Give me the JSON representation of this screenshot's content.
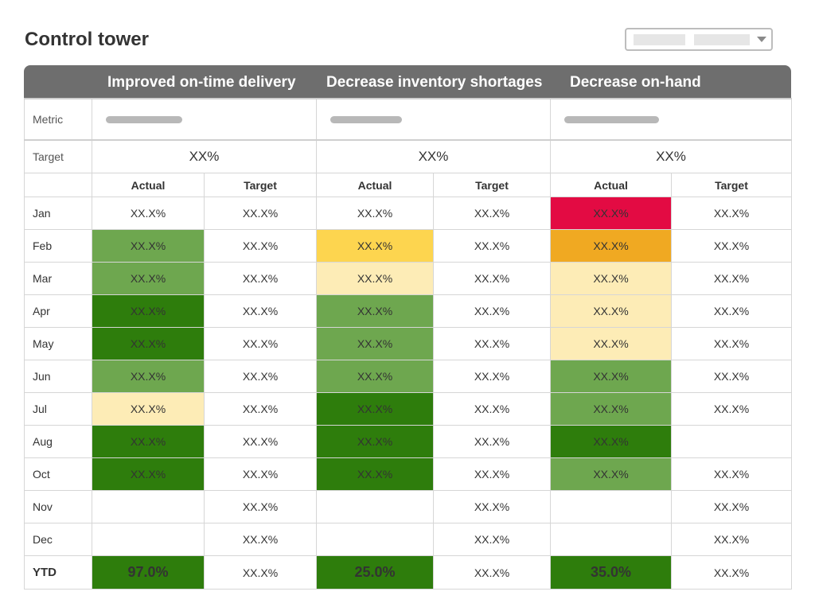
{
  "page": {
    "title": "Control tower"
  },
  "colors": {
    "header": "#6e6e6e",
    "red": "#e30b43",
    "orange": "#f0a922",
    "yellow": "#fdd54f",
    "pale_yellow": "#fdecb6",
    "light_green": "#6ea74f",
    "dark_green": "#2e7d0c"
  },
  "icons": {
    "selector_caret": "chevron-down-icon"
  },
  "table": {
    "groups": [
      {
        "title": "Improved on-time delivery",
        "target": "XX%"
      },
      {
        "title": "Decrease inventory shortages",
        "target": "XX%"
      },
      {
        "title": "Decrease on-hand",
        "target": "XX%"
      }
    ],
    "row_labels": {
      "metric": "Metric",
      "target": "Target"
    },
    "subheaders": {
      "actual": "Actual",
      "target": "Target"
    },
    "rows": [
      {
        "month": "Jan",
        "cells": [
          {
            "value": "XX.X%",
            "status": "none"
          },
          {
            "value": "XX.X%",
            "status": "none"
          },
          {
            "value": "XX.X%",
            "status": "none"
          },
          {
            "value": "XX.X%",
            "status": "none"
          },
          {
            "value": "XX.X%",
            "status": "red"
          },
          {
            "value": "XX.X%",
            "status": "none"
          }
        ]
      },
      {
        "month": "Feb",
        "cells": [
          {
            "value": "XX.X%",
            "status": "lightgreen"
          },
          {
            "value": "XX.X%",
            "status": "none"
          },
          {
            "value": "XX.X%",
            "status": "yellow"
          },
          {
            "value": "XX.X%",
            "status": "none"
          },
          {
            "value": "XX.X%",
            "status": "orange"
          },
          {
            "value": "XX.X%",
            "status": "none"
          }
        ]
      },
      {
        "month": "Mar",
        "cells": [
          {
            "value": "XX.X%",
            "status": "lightgreen"
          },
          {
            "value": "XX.X%",
            "status": "none"
          },
          {
            "value": "XX.X%",
            "status": "pale"
          },
          {
            "value": "XX.X%",
            "status": "none"
          },
          {
            "value": "XX.X%",
            "status": "pale"
          },
          {
            "value": "XX.X%",
            "status": "none"
          }
        ]
      },
      {
        "month": "Apr",
        "cells": [
          {
            "value": "XX.X%",
            "status": "darkgreen"
          },
          {
            "value": "XX.X%",
            "status": "none"
          },
          {
            "value": "XX.X%",
            "status": "lightgreen"
          },
          {
            "value": "XX.X%",
            "status": "none"
          },
          {
            "value": "XX.X%",
            "status": "pale"
          },
          {
            "value": "XX.X%",
            "status": "none"
          }
        ]
      },
      {
        "month": "May",
        "cells": [
          {
            "value": "XX.X%",
            "status": "darkgreen"
          },
          {
            "value": "XX.X%",
            "status": "none"
          },
          {
            "value": "XX.X%",
            "status": "lightgreen"
          },
          {
            "value": "XX.X%",
            "status": "none"
          },
          {
            "value": "XX.X%",
            "status": "pale"
          },
          {
            "value": "XX.X%",
            "status": "none"
          }
        ]
      },
      {
        "month": "Jun",
        "cells": [
          {
            "value": "XX.X%",
            "status": "lightgreen"
          },
          {
            "value": "XX.X%",
            "status": "none"
          },
          {
            "value": "XX.X%",
            "status": "lightgreen"
          },
          {
            "value": "XX.X%",
            "status": "none"
          },
          {
            "value": "XX.X%",
            "status": "lightgreen"
          },
          {
            "value": "XX.X%",
            "status": "none"
          }
        ]
      },
      {
        "month": "Jul",
        "cells": [
          {
            "value": "XX.X%",
            "status": "pale"
          },
          {
            "value": "XX.X%",
            "status": "none"
          },
          {
            "value": "XX.X%",
            "status": "darkgreen"
          },
          {
            "value": "XX.X%",
            "status": "none"
          },
          {
            "value": "XX.X%",
            "status": "lightgreen"
          },
          {
            "value": "XX.X%",
            "status": "none"
          }
        ]
      },
      {
        "month": "Aug",
        "cells": [
          {
            "value": "XX.X%",
            "status": "darkgreen"
          },
          {
            "value": "XX.X%",
            "status": "none"
          },
          {
            "value": "XX.X%",
            "status": "darkgreen"
          },
          {
            "value": "XX.X%",
            "status": "none"
          },
          {
            "value": "XX.X%",
            "status": "darkgreen"
          },
          {
            "value": "",
            "status": "none"
          }
        ]
      },
      {
        "month": "Oct",
        "cells": [
          {
            "value": "XX.X%",
            "status": "darkgreen"
          },
          {
            "value": "XX.X%",
            "status": "none"
          },
          {
            "value": "XX.X%",
            "status": "darkgreen"
          },
          {
            "value": "XX.X%",
            "status": "none"
          },
          {
            "value": "XX.X%",
            "status": "lightgreen"
          },
          {
            "value": "XX.X%",
            "status": "none"
          }
        ]
      },
      {
        "month": "Nov",
        "cells": [
          {
            "value": "",
            "status": "none"
          },
          {
            "value": "XX.X%",
            "status": "none"
          },
          {
            "value": "",
            "status": "none"
          },
          {
            "value": "XX.X%",
            "status": "none"
          },
          {
            "value": "",
            "status": "none"
          },
          {
            "value": "XX.X%",
            "status": "none"
          }
        ]
      },
      {
        "month": "Dec",
        "cells": [
          {
            "value": "",
            "status": "none"
          },
          {
            "value": "XX.X%",
            "status": "none"
          },
          {
            "value": "",
            "status": "none"
          },
          {
            "value": "XX.X%",
            "status": "none"
          },
          {
            "value": "",
            "status": "none"
          },
          {
            "value": "XX.X%",
            "status": "none"
          }
        ]
      }
    ],
    "ytd": {
      "label": "YTD",
      "cells": [
        {
          "value": "97.0%",
          "status": "darkgreen"
        },
        {
          "value": "XX.X%",
          "status": "none"
        },
        {
          "value": "25.0%",
          "status": "darkgreen"
        },
        {
          "value": "XX.X%",
          "status": "none"
        },
        {
          "value": "35.0%",
          "status": "darkgreen"
        },
        {
          "value": "XX.X%",
          "status": "none"
        }
      ]
    }
  }
}
